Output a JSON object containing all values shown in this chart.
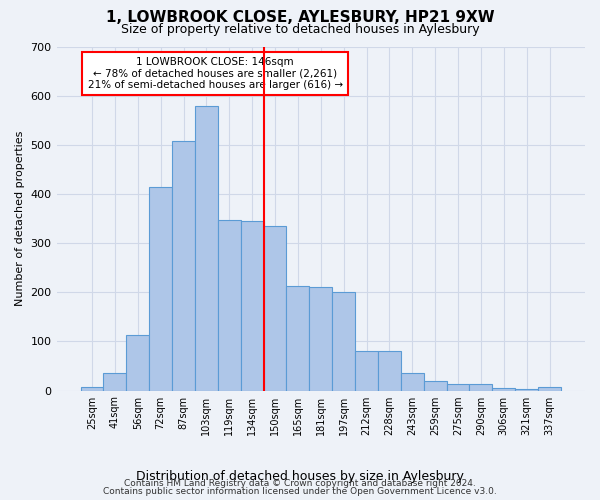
{
  "title": "1, LOWBROOK CLOSE, AYLESBURY, HP21 9XW",
  "subtitle": "Size of property relative to detached houses in Aylesbury",
  "xlabel": "Distribution of detached houses by size in Aylesbury",
  "ylabel": "Number of detached properties",
  "bar_labels": [
    "25sqm",
    "41sqm",
    "56sqm",
    "72sqm",
    "87sqm",
    "103sqm",
    "119sqm",
    "134sqm",
    "150sqm",
    "165sqm",
    "181sqm",
    "197sqm",
    "212sqm",
    "228sqm",
    "243sqm",
    "259sqm",
    "275sqm",
    "290sqm",
    "306sqm",
    "321sqm",
    "337sqm"
  ],
  "bar_heights": [
    8,
    35,
    113,
    415,
    508,
    578,
    348,
    345,
    335,
    212,
    210,
    200,
    80,
    80,
    35,
    20,
    13,
    13,
    5,
    3,
    8
  ],
  "bar_color": "#aec6e8",
  "bar_edge_color": "#5b9bd5",
  "vline_index": 8,
  "vline_color": "red",
  "annotation_text": "1 LOWBROOK CLOSE: 146sqm\n← 78% of detached houses are smaller (2,261)\n21% of semi-detached houses are larger (616) →",
  "annotation_box_color": "red",
  "ylim": [
    0,
    700
  ],
  "yticks": [
    0,
    100,
    200,
    300,
    400,
    500,
    600,
    700
  ],
  "grid_color": "#d0d8e8",
  "bg_color": "#eef2f8",
  "footer1": "Contains HM Land Registry data © Crown copyright and database right 2024.",
  "footer2": "Contains public sector information licensed under the Open Government Licence v3.0."
}
